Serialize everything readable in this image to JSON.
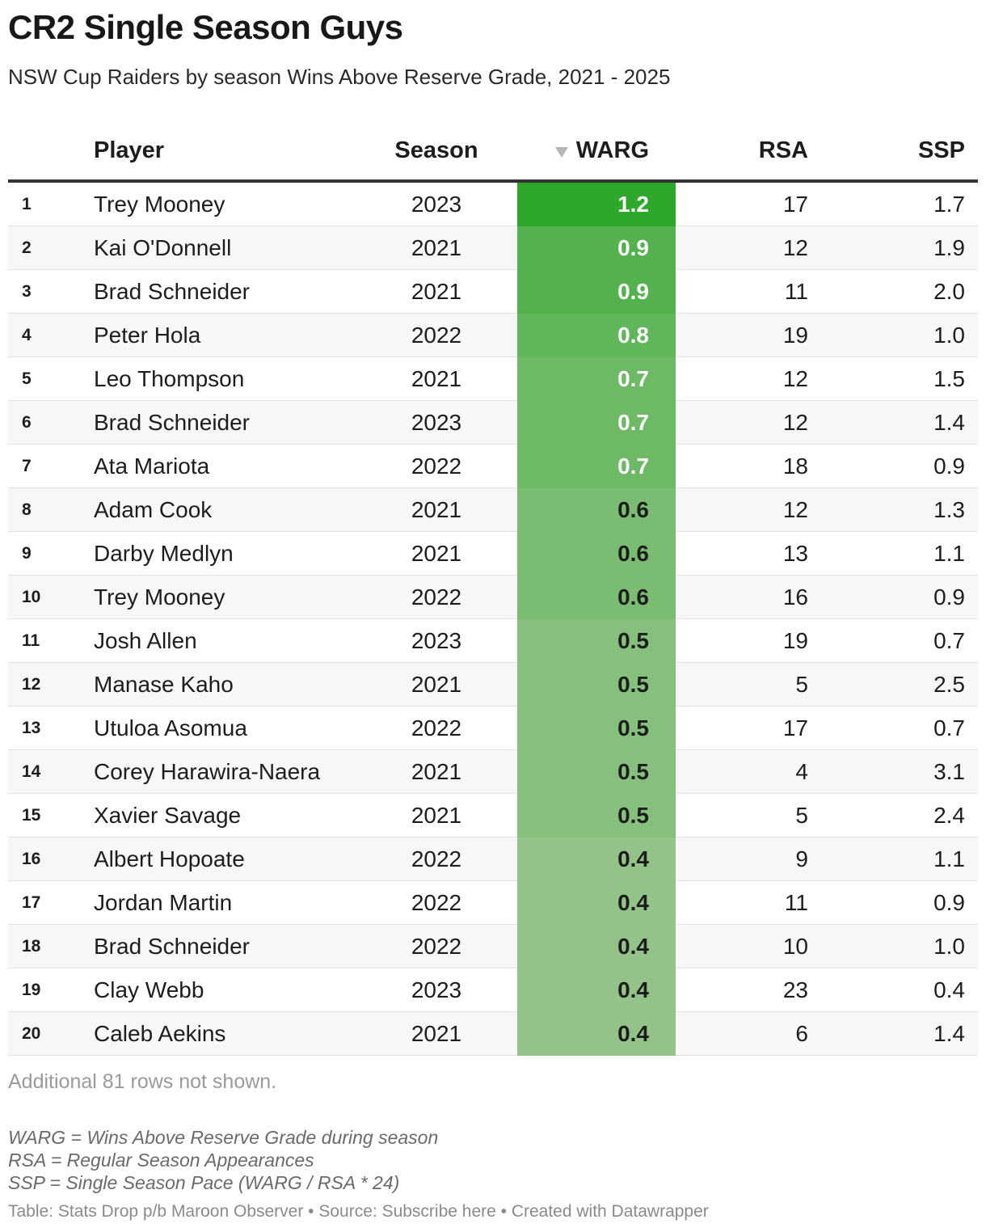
{
  "header": {
    "title": "CR2 Single Season Guys",
    "subtitle": "NSW Cup Raiders by season Wins Above Reserve Grade, 2021 - 2025"
  },
  "chart_data": {
    "type": "table",
    "columns": [
      "",
      "Player",
      "Season",
      "WARG",
      "RSA",
      "SSP"
    ],
    "sorted_by": "WARG",
    "sort_direction": "descending",
    "heat_column": "WARG",
    "colors": {
      "heat_max": "#2ea82a",
      "heat_min": "#93c389",
      "dark_text": "#1d1d1d",
      "light_text": "#ffffff"
    },
    "rows": [
      {
        "rank": "1",
        "player": "Trey Mooney",
        "season": "2023",
        "warg": "1.2",
        "rsa": "17",
        "ssp": "1.7"
      },
      {
        "rank": "2",
        "player": "Kai O'Donnell",
        "season": "2021",
        "warg": "0.9",
        "rsa": "12",
        "ssp": "1.9"
      },
      {
        "rank": "3",
        "player": "Brad Schneider",
        "season": "2021",
        "warg": "0.9",
        "rsa": "11",
        "ssp": "2.0"
      },
      {
        "rank": "4",
        "player": "Peter Hola",
        "season": "2022",
        "warg": "0.8",
        "rsa": "19",
        "ssp": "1.0"
      },
      {
        "rank": "5",
        "player": "Leo Thompson",
        "season": "2021",
        "warg": "0.7",
        "rsa": "12",
        "ssp": "1.5"
      },
      {
        "rank": "6",
        "player": "Brad Schneider",
        "season": "2023",
        "warg": "0.7",
        "rsa": "12",
        "ssp": "1.4"
      },
      {
        "rank": "7",
        "player": "Ata Mariota",
        "season": "2022",
        "warg": "0.7",
        "rsa": "18",
        "ssp": "0.9"
      },
      {
        "rank": "8",
        "player": "Adam Cook",
        "season": "2021",
        "warg": "0.6",
        "rsa": "12",
        "ssp": "1.3"
      },
      {
        "rank": "9",
        "player": "Darby Medlyn",
        "season": "2021",
        "warg": "0.6",
        "rsa": "13",
        "ssp": "1.1"
      },
      {
        "rank": "10",
        "player": "Trey Mooney",
        "season": "2022",
        "warg": "0.6",
        "rsa": "16",
        "ssp": "0.9"
      },
      {
        "rank": "11",
        "player": "Josh Allen",
        "season": "2023",
        "warg": "0.5",
        "rsa": "19",
        "ssp": "0.7"
      },
      {
        "rank": "12",
        "player": "Manase Kaho",
        "season": "2021",
        "warg": "0.5",
        "rsa": "5",
        "ssp": "2.5"
      },
      {
        "rank": "13",
        "player": "Utuloa Asomua",
        "season": "2022",
        "warg": "0.5",
        "rsa": "17",
        "ssp": "0.7"
      },
      {
        "rank": "14",
        "player": "Corey Harawira-Naera",
        "season": "2021",
        "warg": "0.5",
        "rsa": "4",
        "ssp": "3.1"
      },
      {
        "rank": "15",
        "player": "Xavier Savage",
        "season": "2021",
        "warg": "0.5",
        "rsa": "5",
        "ssp": "2.4"
      },
      {
        "rank": "16",
        "player": "Albert Hopoate",
        "season": "2022",
        "warg": "0.4",
        "rsa": "9",
        "ssp": "1.1"
      },
      {
        "rank": "17",
        "player": "Jordan Martin",
        "season": "2022",
        "warg": "0.4",
        "rsa": "11",
        "ssp": "0.9"
      },
      {
        "rank": "18",
        "player": "Brad Schneider",
        "season": "2022",
        "warg": "0.4",
        "rsa": "10",
        "ssp": "1.0"
      },
      {
        "rank": "19",
        "player": "Clay Webb",
        "season": "2023",
        "warg": "0.4",
        "rsa": "23",
        "ssp": "0.4"
      },
      {
        "rank": "20",
        "player": "Caleb Aekins",
        "season": "2021",
        "warg": "0.4",
        "rsa": "6",
        "ssp": "1.4"
      }
    ]
  },
  "footer": {
    "more_rows": "Additional 81 rows not shown.",
    "notes": [
      "WARG = Wins Above Reserve Grade during season",
      "RSA = Regular Season Appearances",
      "SSP = Single Season Pace (WARG / RSA * 24)"
    ],
    "source": "Table: Stats Drop p/b Maroon Observer • Source: Subscribe here • Created with Datawrapper"
  }
}
